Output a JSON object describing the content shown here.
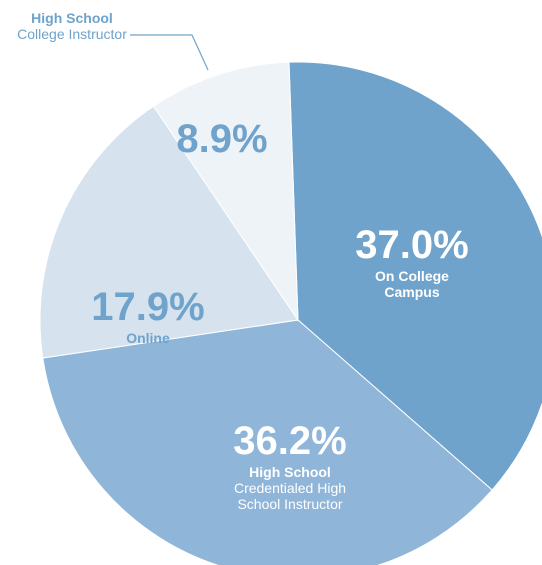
{
  "chart_data": {
    "type": "pie",
    "categories": [
      "On College Campus",
      "Credentialed High School Instructor",
      "Online",
      "College Instructor"
    ],
    "category_groups": [
      "",
      "High School",
      "",
      "High School"
    ],
    "values": [
      37.0,
      36.2,
      17.9,
      8.9
    ],
    "value_labels": [
      "37.0%",
      "36.2%",
      "17.9%",
      "8.9%"
    ],
    "colors": [
      "#6fa3cc",
      "#8fb5d9",
      "#d6e3ef",
      "#eef3f8"
    ]
  }
}
